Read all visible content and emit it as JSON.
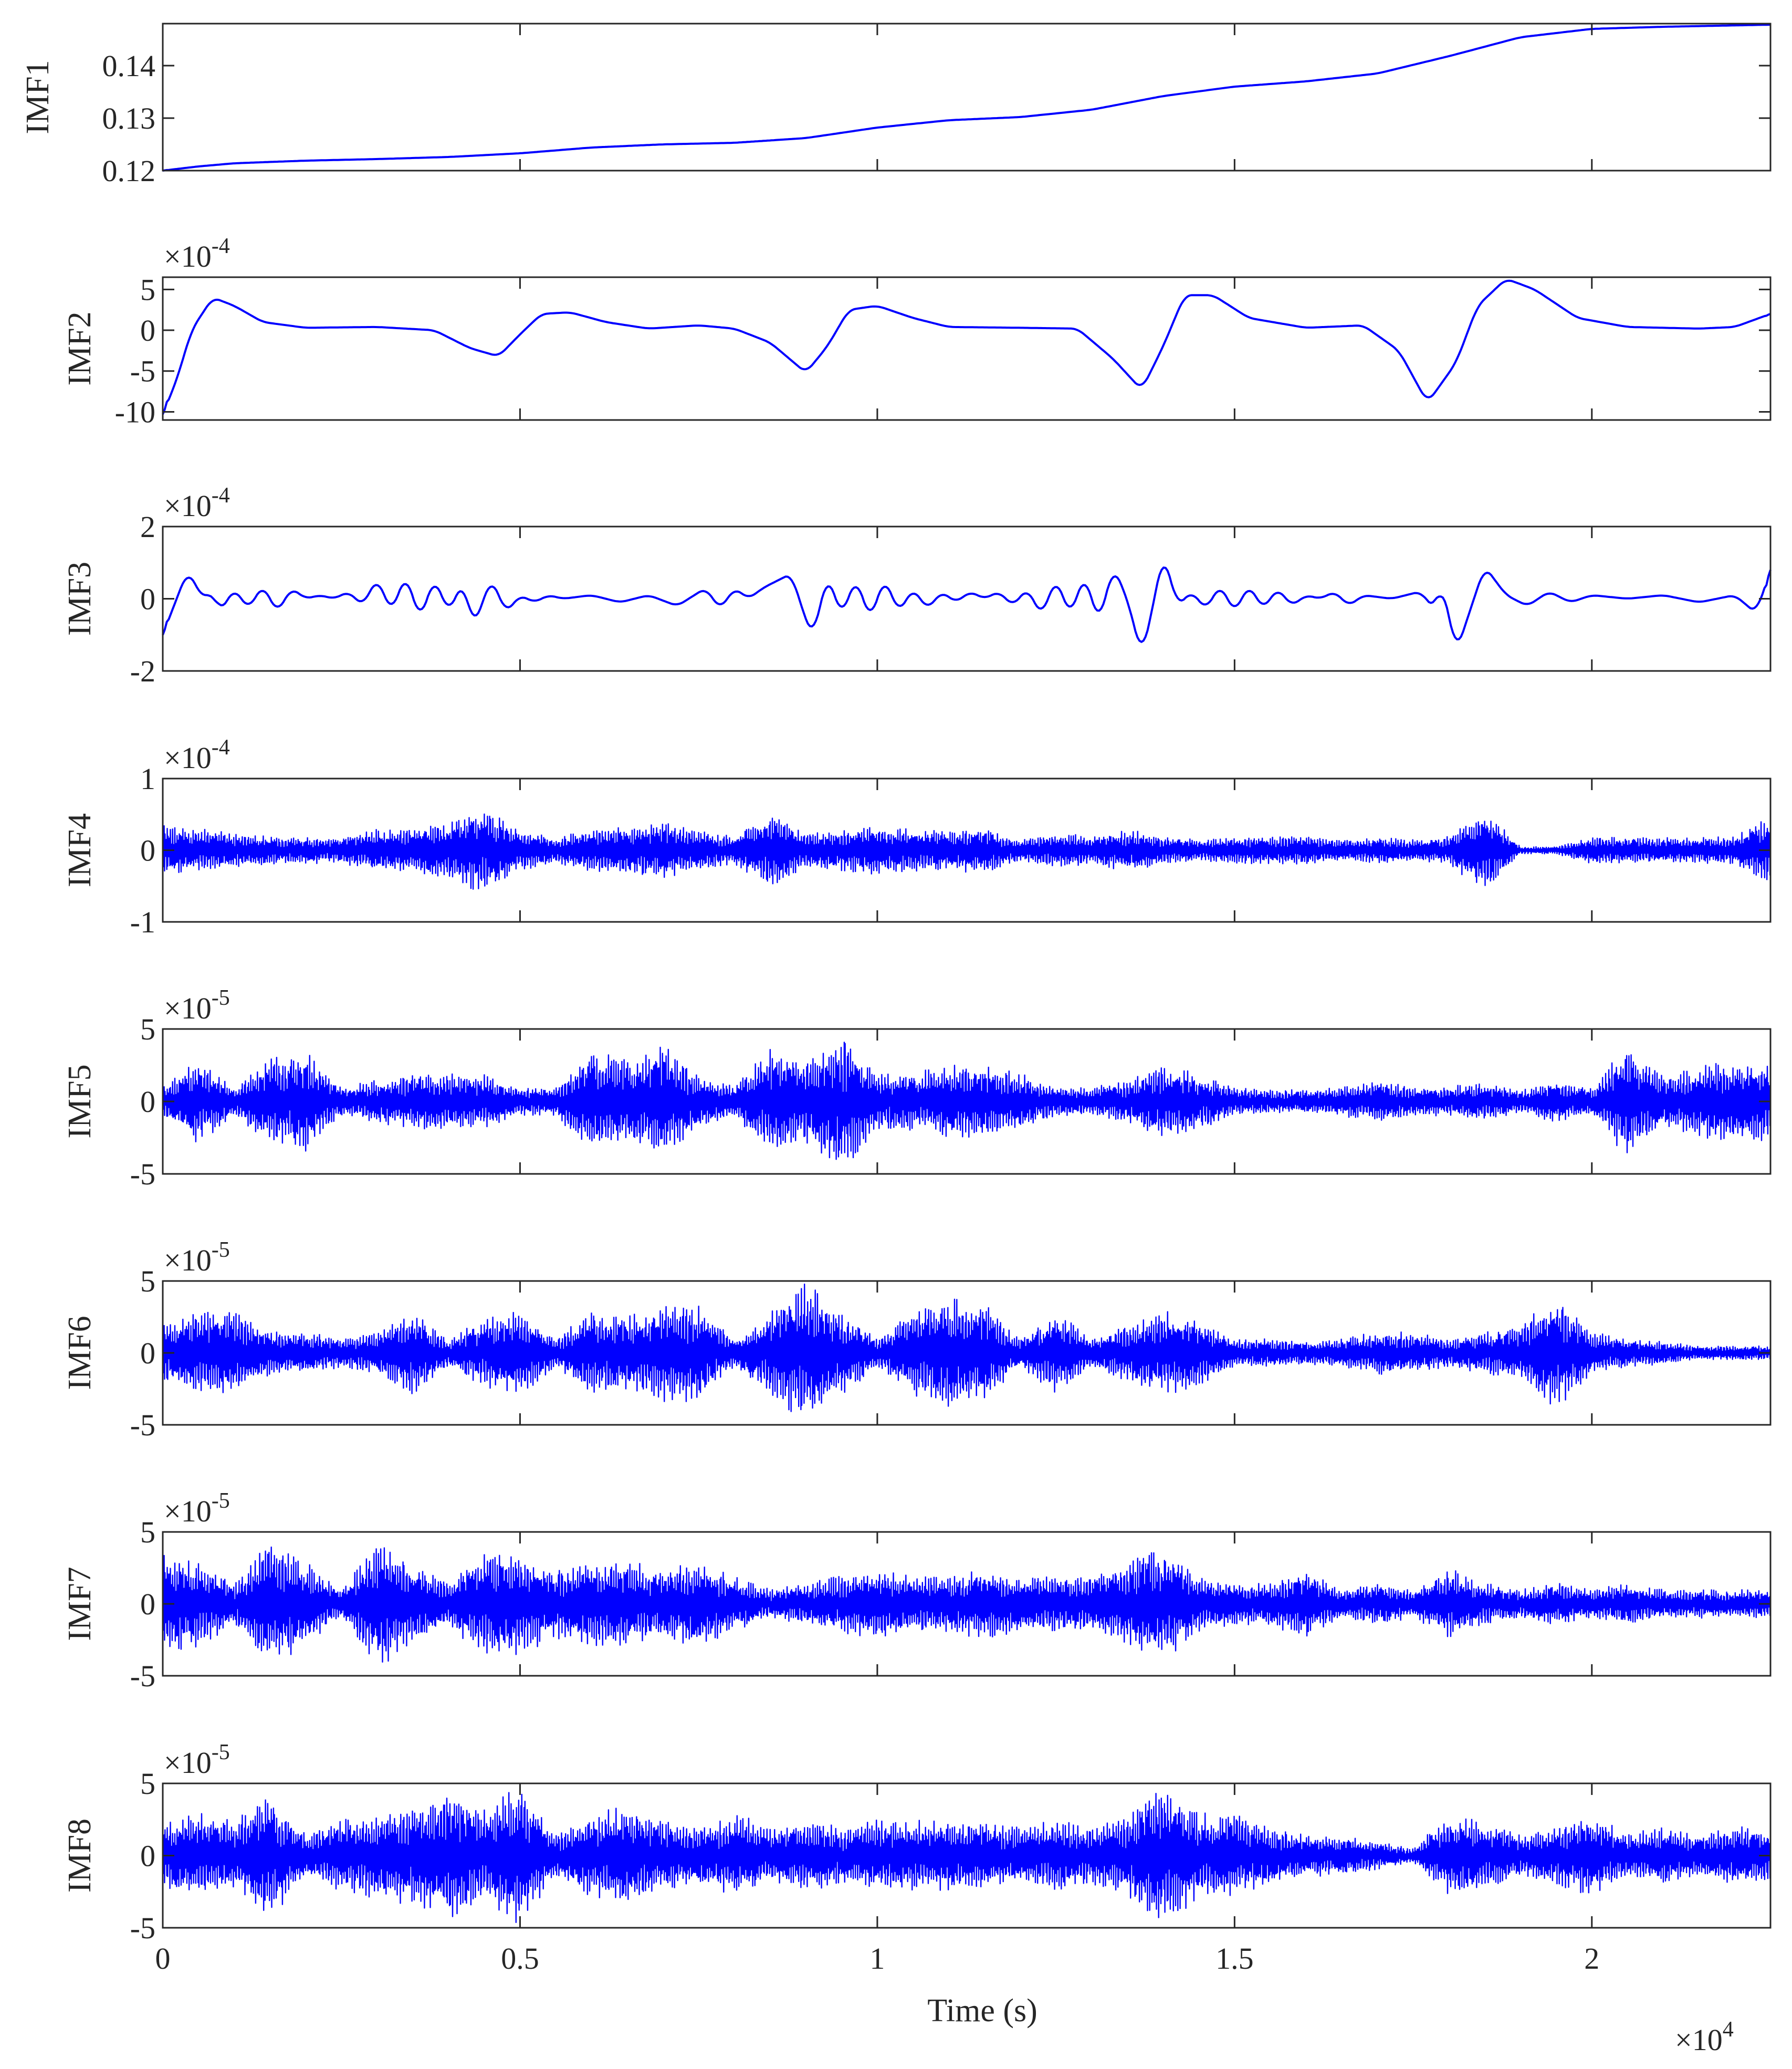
{
  "chart_data": [
    {
      "type": "line",
      "ylabel": "IMF1",
      "exponent": "",
      "yticks": [
        {
          "v": 0.12,
          "t": "0.12"
        },
        {
          "v": 0.13,
          "t": "0.13"
        },
        {
          "v": 0.14,
          "t": "0.14"
        }
      ],
      "ylim": [
        0.12,
        0.148
      ],
      "xlim": [
        0,
        22500
      ],
      "x": [
        0,
        500,
        1000,
        2000,
        3000,
        4000,
        5000,
        6000,
        7000,
        8000,
        9000,
        10000,
        11000,
        12000,
        13000,
        14000,
        15000,
        16000,
        17000,
        18000,
        19000,
        20000,
        21000,
        22500
      ],
      "values": [
        0.12,
        0.1208,
        0.1214,
        0.1219,
        0.1222,
        0.1226,
        0.1233,
        0.1244,
        0.125,
        0.1253,
        0.1262,
        0.1282,
        0.1296,
        0.1302,
        0.1316,
        0.1342,
        0.136,
        0.137,
        0.1385,
        0.1418,
        0.1454,
        0.147,
        0.1474,
        0.1478
      ]
    },
    {
      "type": "line",
      "ylabel": "IMF2",
      "exponent": "-4",
      "yticks": [
        {
          "v": -10,
          "t": "-10"
        },
        {
          "v": -5,
          "t": "-5"
        },
        {
          "v": 0,
          "t": "0"
        },
        {
          "v": 5,
          "t": "5"
        }
      ],
      "ylim": [
        -11,
        6.5
      ],
      "xlim": [
        0,
        22500
      ],
      "x": [
        0,
        200,
        400,
        700,
        1000,
        1400,
        2000,
        3000,
        3800,
        4300,
        4700,
        5000,
        5300,
        5700,
        6200,
        6800,
        7500,
        8000,
        8500,
        9000,
        9300,
        9600,
        10000,
        10500,
        11000,
        12000,
        12800,
        13300,
        13700,
        14000,
        14300,
        14700,
        15200,
        16000,
        16800,
        17300,
        17700,
        18100,
        18400,
        18800,
        19200,
        19800,
        20500,
        21500,
        22000,
        22500
      ],
      "values": [
        -10.3,
        -6.0,
        0.0,
        4.0,
        3.0,
        1.0,
        0.3,
        0.4,
        0.0,
        -2.2,
        -3.2,
        -0.5,
        2.0,
        2.2,
        1.0,
        0.2,
        0.6,
        0.2,
        -1.5,
        -5.2,
        -2.0,
        2.5,
        3.0,
        1.5,
        0.4,
        0.3,
        0.2,
        -3.5,
        -7.3,
        -2.0,
        4.3,
        4.3,
        1.5,
        0.3,
        0.6,
        -2.5,
        -8.9,
        -4.0,
        3.0,
        6.3,
        5.0,
        1.5,
        0.4,
        0.2,
        0.4,
        2.0
      ]
    },
    {
      "type": "line",
      "ylabel": "IMF3",
      "exponent": "-4",
      "yticks": [
        {
          "v": -2,
          "t": "-2"
        },
        {
          "v": 0,
          "t": "0"
        },
        {
          "v": 2,
          "t": "2"
        }
      ],
      "ylim": [
        -2,
        2
      ],
      "xlim": [
        0,
        22500
      ],
      "x": [
        0,
        350,
        560,
        700,
        800,
        1000,
        1200,
        1400,
        1600,
        1800,
        2000,
        2200,
        2400,
        2600,
        2800,
        3000,
        3200,
        3400,
        3600,
        3800,
        4000,
        4200,
        4350,
        4600,
        4800,
        5000,
        5200,
        5400,
        5600,
        6000,
        6400,
        6800,
        7200,
        7600,
        7800,
        8000,
        8200,
        8400,
        8800,
        8950,
        9100,
        9300,
        9500,
        9700,
        9900,
        10100,
        10300,
        10500,
        10700,
        10900,
        11100,
        11300,
        11500,
        11700,
        11900,
        12100,
        12300,
        12500,
        12700,
        12900,
        13100,
        13300,
        13500,
        13700,
        13850,
        14000,
        14200,
        14400,
        14600,
        14800,
        15000,
        15200,
        15400,
        15600,
        15800,
        16000,
        16200,
        16400,
        16600,
        16800,
        17200,
        17600,
        17800,
        17900,
        18100,
        18300,
        18500,
        18800,
        19100,
        19400,
        19700,
        20000,
        20500,
        21000,
        21500,
        22000,
        22300,
        22500
      ],
      "values": [
        -1.0,
        0.8,
        0.0,
        0.2,
        -0.4,
        0.3,
        -0.3,
        0.4,
        -0.4,
        0.3,
        0.0,
        0.1,
        0.0,
        0.2,
        -0.2,
        0.6,
        -0.4,
        0.7,
        -0.6,
        0.6,
        -0.4,
        0.5,
        -0.8,
        0.6,
        -0.4,
        0.1,
        -0.1,
        0.1,
        0.0,
        0.1,
        -0.1,
        0.1,
        -0.2,
        0.3,
        -0.3,
        0.3,
        0.0,
        0.3,
        0.7,
        -0.3,
        -1.1,
        0.7,
        -0.5,
        0.6,
        -0.6,
        0.6,
        -0.4,
        0.3,
        -0.3,
        0.2,
        -0.1,
        0.2,
        0.0,
        0.2,
        -0.2,
        0.3,
        -0.5,
        0.6,
        -0.5,
        0.7,
        -0.7,
        0.9,
        0.0,
        -1.6,
        -0.3,
        1.3,
        -0.2,
        0.2,
        -0.3,
        0.4,
        -0.4,
        0.4,
        -0.3,
        0.3,
        -0.2,
        0.1,
        0.0,
        0.2,
        -0.2,
        0.1,
        0.0,
        0.2,
        -0.3,
        0.5,
        -1.5,
        -0.3,
        0.9,
        0.1,
        -0.2,
        0.2,
        -0.1,
        0.1,
        0.0,
        0.1,
        -0.1,
        0.1,
        -0.4,
        0.8
      ]
    },
    {
      "type": "line",
      "ylabel": "IMF4",
      "exponent": "-4",
      "yticks": [
        {
          "v": -1,
          "t": "-1"
        },
        {
          "v": 0,
          "t": "0"
        },
        {
          "v": 1,
          "t": "1"
        }
      ],
      "ylim": [
        -1,
        1
      ],
      "xlim": [
        0,
        22500
      ],
      "samples": "envelope",
      "x": [
        0,
        500,
        1000,
        1500,
        2000,
        2500,
        3000,
        3500,
        4000,
        4500,
        5000,
        5500,
        6000,
        6500,
        7000,
        7500,
        8000,
        8500,
        9000,
        9500,
        10000,
        10500,
        11000,
        11500,
        12000,
        12500,
        13000,
        13500,
        14000,
        14500,
        15000,
        15500,
        16000,
        16500,
        17000,
        17500,
        18000,
        18500,
        19000,
        19500,
        20000,
        20500,
        21000,
        21500,
        22000,
        22500
      ],
      "envelope": [
        0.35,
        0.3,
        0.25,
        0.2,
        0.18,
        0.2,
        0.3,
        0.32,
        0.4,
        0.65,
        0.3,
        0.18,
        0.3,
        0.35,
        0.4,
        0.3,
        0.2,
        0.55,
        0.25,
        0.3,
        0.35,
        0.3,
        0.3,
        0.32,
        0.15,
        0.25,
        0.2,
        0.3,
        0.2,
        0.15,
        0.18,
        0.2,
        0.2,
        0.15,
        0.18,
        0.15,
        0.2,
        0.6,
        0.05,
        0.05,
        0.2,
        0.18,
        0.18,
        0.18,
        0.2,
        0.5
      ]
    },
    {
      "type": "line",
      "ylabel": "IMF5",
      "exponent": "-5",
      "yticks": [
        {
          "v": -5,
          "t": "-5"
        },
        {
          "v": 0,
          "t": "0"
        },
        {
          "v": 5,
          "t": "5"
        }
      ],
      "ylim": [
        -5,
        5
      ],
      "xlim": [
        0,
        22500
      ],
      "samples": "envelope",
      "x": [
        0,
        500,
        1000,
        1500,
        2000,
        2500,
        3000,
        3500,
        4000,
        4500,
        5000,
        5500,
        6000,
        6500,
        7000,
        7500,
        8000,
        8500,
        9000,
        9500,
        10000,
        10500,
        11000,
        11500,
        12000,
        12500,
        13000,
        13500,
        14000,
        14500,
        15000,
        15500,
        16000,
        16500,
        17000,
        17500,
        18000,
        18500,
        19000,
        19500,
        20000,
        20500,
        21000,
        21500,
        22000,
        22500
      ],
      "envelope": [
        1.0,
        3.0,
        1.0,
        3.2,
        3.5,
        1.0,
        1.5,
        2.0,
        2.0,
        2.0,
        1.0,
        1.0,
        3.6,
        3.0,
        4.0,
        2.0,
        1.0,
        3.8,
        3.0,
        4.8,
        2.0,
        2.0,
        2.5,
        2.5,
        2.0,
        1.0,
        1.0,
        1.5,
        2.5,
        2.0,
        1.0,
        0.8,
        0.8,
        1.0,
        1.5,
        1.0,
        1.0,
        1.5,
        0.8,
        1.5,
        1.0,
        4.0,
        1.8,
        2.5,
        3.0,
        3.0
      ]
    },
    {
      "type": "line",
      "ylabel": "IMF6",
      "exponent": "-5",
      "yticks": [
        {
          "v": -5,
          "t": "-5"
        },
        {
          "v": 0,
          "t": "0"
        },
        {
          "v": 5,
          "t": "5"
        }
      ],
      "ylim": [
        -5,
        5
      ],
      "xlim": [
        0,
        22500
      ],
      "samples": "envelope",
      "x": [
        0,
        500,
        1000,
        1500,
        2000,
        2500,
        3000,
        3500,
        4000,
        4500,
        5000,
        5500,
        6000,
        6500,
        7000,
        7500,
        8000,
        8500,
        9000,
        9500,
        10000,
        10500,
        11000,
        11500,
        12000,
        12500,
        13000,
        13500,
        14000,
        14500,
        15000,
        15500,
        16000,
        16500,
        17000,
        17500,
        18000,
        18500,
        19000,
        19500,
        20000,
        20500,
        21000,
        21500,
        22000,
        22500
      ],
      "envelope": [
        2.0,
        3.0,
        3.0,
        1.5,
        1.5,
        1.0,
        1.5,
        3.0,
        1.0,
        2.5,
        3.0,
        1.0,
        3.0,
        2.5,
        3.5,
        3.5,
        1.0,
        3.0,
        5.0,
        3.0,
        1.0,
        3.0,
        4.0,
        3.5,
        1.0,
        3.0,
        1.0,
        2.0,
        3.0,
        2.5,
        1.0,
        1.0,
        0.8,
        1.0,
        1.5,
        1.5,
        1.0,
        1.5,
        2.0,
        4.0,
        1.5,
        1.0,
        0.8,
        0.5,
        0.5,
        0.5
      ]
    },
    {
      "type": "line",
      "ylabel": "IMF7",
      "exponent": "-5",
      "yticks": [
        {
          "v": -5,
          "t": "-5"
        },
        {
          "v": 0,
          "t": "0"
        },
        {
          "v": 5,
          "t": "5"
        }
      ],
      "ylim": [
        -5,
        5
      ],
      "xlim": [
        0,
        22500
      ],
      "samples": "envelope",
      "x": [
        0,
        500,
        1000,
        1500,
        2000,
        2500,
        3000,
        3500,
        4000,
        4500,
        5000,
        5500,
        6000,
        6500,
        7000,
        7500,
        8000,
        8500,
        9000,
        9500,
        10000,
        10500,
        11000,
        11500,
        12000,
        12500,
        13000,
        13500,
        14000,
        14500,
        15000,
        15500,
        16000,
        16500,
        17000,
        17500,
        18000,
        18500,
        19000,
        19500,
        20000,
        20500,
        21000,
        21500,
        22000,
        22500
      ],
      "envelope": [
        3.5,
        3.0,
        1.5,
        4.5,
        3.0,
        1.0,
        4.5,
        3.0,
        1.5,
        4.0,
        3.5,
        2.5,
        3.0,
        3.0,
        2.5,
        3.0,
        2.0,
        1.0,
        1.5,
        2.0,
        2.5,
        2.0,
        2.0,
        2.5,
        2.0,
        2.0,
        2.0,
        3.0,
        4.0,
        2.0,
        1.5,
        1.5,
        2.5,
        1.0,
        1.5,
        1.0,
        2.5,
        1.5,
        1.0,
        1.5,
        1.0,
        1.5,
        1.0,
        1.0,
        1.0,
        1.0
      ]
    },
    {
      "type": "line",
      "ylabel": "IMF8",
      "exponent": "-5",
      "yticks": [
        {
          "v": -5,
          "t": "-5"
        },
        {
          "v": 0,
          "t": "0"
        },
        {
          "v": 5,
          "t": "5"
        }
      ],
      "ylim": [
        -5,
        5
      ],
      "xlim": [
        0,
        22500
      ],
      "samples": "envelope",
      "x": [
        0,
        500,
        1000,
        1500,
        2000,
        2500,
        3000,
        3500,
        4000,
        4500,
        5000,
        5500,
        6000,
        6500,
        7000,
        7500,
        8000,
        8500,
        9000,
        9500,
        10000,
        10500,
        11000,
        11500,
        12000,
        12500,
        13000,
        13500,
        14000,
        14500,
        15000,
        15500,
        16000,
        16500,
        17000,
        17500,
        18000,
        18500,
        19000,
        19500,
        20000,
        20500,
        21000,
        21500,
        22000,
        22500
      ],
      "envelope": [
        2.5,
        3.0,
        2.5,
        4.5,
        1.5,
        2.5,
        3.0,
        3.5,
        4.5,
        3.5,
        5.0,
        1.5,
        3.0,
        3.5,
        2.5,
        2.0,
        3.0,
        2.0,
        2.5,
        2.0,
        2.5,
        2.5,
        2.5,
        2.5,
        2.0,
        2.5,
        2.0,
        3.0,
        5.0,
        3.0,
        3.0,
        2.0,
        1.5,
        1.5,
        1.0,
        0.5,
        3.0,
        2.5,
        1.5,
        2.0,
        3.0,
        1.5,
        2.0,
        1.5,
        2.0,
        2.0
      ]
    }
  ],
  "x_axis": {
    "ticks": [
      {
        "v": 0,
        "t": "0"
      },
      {
        "v": 5000,
        "t": "0.5"
      },
      {
        "v": 10000,
        "t": "1"
      },
      {
        "v": 15000,
        "t": "1.5"
      },
      {
        "v": 20000,
        "t": "2"
      }
    ],
    "label": "Time (s)",
    "exponent": "4"
  },
  "style": {
    "line_color": "#0000ff",
    "axis_color": "#262626"
  }
}
